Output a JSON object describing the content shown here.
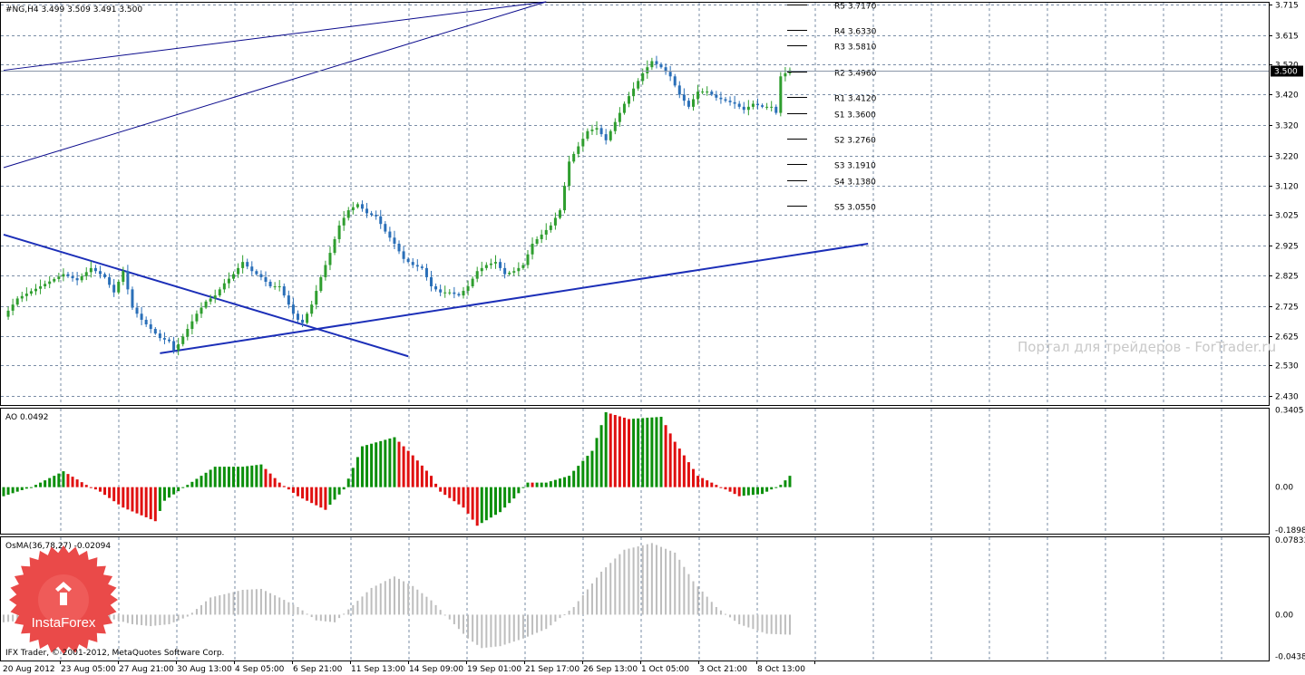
{
  "chart_data": {
    "type": "candlestick",
    "symbol_header": "#NG,H4  3.499 3.509 3.491 3.500",
    "price_axis": {
      "ticks": [
        "3.715",
        "3.615",
        "3.520",
        "3.420",
        "3.320",
        "3.220",
        "3.120",
        "3.025",
        "2.925",
        "2.825",
        "2.725",
        "2.625",
        "2.530",
        "2.430"
      ],
      "range": [
        2.4,
        3.725
      ],
      "current_price": "3.500"
    },
    "time_axis": {
      "labels": [
        "20 Aug 2012",
        "23 Aug 05:00",
        "27 Aug 21:00",
        "30 Aug 13:00",
        "4 Sep 05:00",
        "6 Sep 21:00",
        "11 Sep 13:00",
        "14 Sep 09:00",
        "19 Sep 01:00",
        "21 Sep 17:00",
        "26 Sep 13:00",
        "1 Oct 05:00",
        "3 Oct 21:00",
        "8 Oct 13:00"
      ]
    },
    "price_path": [
      [
        0,
        2.69
      ],
      [
        3,
        2.75
      ],
      [
        8,
        2.79
      ],
      [
        13,
        2.83
      ],
      [
        16,
        2.81
      ],
      [
        19,
        2.85
      ],
      [
        22,
        2.82
      ],
      [
        24,
        2.77
      ],
      [
        26,
        2.84
      ],
      [
        28,
        2.72
      ],
      [
        30,
        2.68
      ],
      [
        32,
        2.65
      ],
      [
        34,
        2.62
      ],
      [
        36,
        2.61
      ],
      [
        37,
        2.58
      ],
      [
        38,
        2.6
      ],
      [
        40,
        2.65
      ],
      [
        42,
        2.7
      ],
      [
        44,
        2.74
      ],
      [
        46,
        2.76
      ],
      [
        48,
        2.8
      ],
      [
        50,
        2.83
      ],
      [
        52,
        2.87
      ],
      [
        54,
        2.84
      ],
      [
        56,
        2.82
      ],
      [
        58,
        2.79
      ],
      [
        60,
        2.79
      ],
      [
        62,
        2.73
      ],
      [
        63,
        2.7
      ],
      [
        64,
        2.68
      ],
      [
        65,
        2.67
      ],
      [
        67,
        2.73
      ],
      [
        69,
        2.82
      ],
      [
        71,
        2.9
      ],
      [
        73,
        2.99
      ],
      [
        75,
        3.04
      ],
      [
        77,
        3.06
      ],
      [
        79,
        3.03
      ],
      [
        81,
        3.02
      ],
      [
        83,
        2.97
      ],
      [
        85,
        2.93
      ],
      [
        87,
        2.88
      ],
      [
        89,
        2.86
      ],
      [
        91,
        2.85
      ],
      [
        93,
        2.79
      ],
      [
        95,
        2.77
      ],
      [
        97,
        2.77
      ],
      [
        99,
        2.76
      ],
      [
        101,
        2.79
      ],
      [
        103,
        2.84
      ],
      [
        105,
        2.86
      ],
      [
        107,
        2.87
      ],
      [
        109,
        2.83
      ],
      [
        111,
        2.84
      ],
      [
        113,
        2.86
      ],
      [
        115,
        2.93
      ],
      [
        117,
        2.96
      ],
      [
        119,
        2.99
      ],
      [
        121,
        3.04
      ],
      [
        123,
        3.2
      ],
      [
        125,
        3.25
      ],
      [
        127,
        3.3
      ],
      [
        129,
        3.31
      ],
      [
        131,
        3.27
      ],
      [
        133,
        3.33
      ],
      [
        135,
        3.39
      ],
      [
        137,
        3.44
      ],
      [
        139,
        3.49
      ],
      [
        141,
        3.53
      ],
      [
        143,
        3.51
      ],
      [
        145,
        3.48
      ],
      [
        147,
        3.42
      ],
      [
        149,
        3.38
      ],
      [
        151,
        3.43
      ],
      [
        153,
        3.43
      ],
      [
        155,
        3.41
      ],
      [
        157,
        3.4
      ],
      [
        159,
        3.39
      ],
      [
        161,
        3.37
      ],
      [
        163,
        3.39
      ],
      [
        165,
        3.38
      ],
      [
        167,
        3.38
      ],
      [
        168,
        3.36
      ],
      [
        169,
        3.48
      ],
      [
        170,
        3.49
      ],
      [
        171,
        3.5
      ]
    ],
    "pivot_levels": [
      {
        "label": "R5",
        "value": "3.7170"
      },
      {
        "label": "R4",
        "value": "3.6330"
      },
      {
        "label": "R3",
        "value": "3.5810"
      },
      {
        "label": "R2",
        "value": "3.4960"
      },
      {
        "label": "R1",
        "value": "3.4120"
      },
      {
        "label": "S1",
        "value": "3.3600"
      },
      {
        "label": "S2",
        "value": "3.2760"
      },
      {
        "label": "S3",
        "value": "3.1910"
      },
      {
        "label": "S4",
        "value": "3.1380"
      },
      {
        "label": "S5",
        "value": "3.0550"
      }
    ],
    "trendlines": [
      {
        "from": [
          0,
          3.5
        ],
        "to": [
          118,
          3.725
        ],
        "color": "#0a0a8c",
        "width": 1
      },
      {
        "from": [
          0,
          3.18
        ],
        "to": [
          118,
          3.725
        ],
        "color": "#0a0a8c",
        "width": 1
      },
      {
        "from": [
          0,
          2.96
        ],
        "to": [
          88,
          2.56
        ],
        "color": "#1c2fb8",
        "width": 2
      },
      {
        "from": [
          34,
          2.57
        ],
        "to": [
          188,
          2.93
        ],
        "color": "#1c2fb8",
        "width": 2
      }
    ],
    "ao": {
      "title": "AO 0.0492",
      "ticks": [
        "0.3405",
        "0.00",
        "-0.1898"
      ],
      "range": [
        -0.205,
        0.35
      ],
      "keypoints": [
        [
          0,
          -0.04
        ],
        [
          6,
          0.0
        ],
        [
          13,
          0.07
        ],
        [
          18,
          0.01
        ],
        [
          21,
          -0.02
        ],
        [
          26,
          -0.09
        ],
        [
          33,
          -0.15
        ],
        [
          35,
          -0.06
        ],
        [
          40,
          0.01
        ],
        [
          46,
          0.09
        ],
        [
          52,
          0.09
        ],
        [
          56,
          0.1
        ],
        [
          60,
          0.02
        ],
        [
          64,
          -0.04
        ],
        [
          70,
          -0.1
        ],
        [
          74,
          -0.01
        ],
        [
          78,
          0.18
        ],
        [
          85,
          0.22
        ],
        [
          89,
          0.14
        ],
        [
          93,
          0.05
        ],
        [
          95,
          -0.02
        ],
        [
          100,
          -0.09
        ],
        [
          103,
          -0.17
        ],
        [
          108,
          -0.11
        ],
        [
          111,
          -0.05
        ],
        [
          114,
          0.02
        ],
        [
          118,
          0.02
        ],
        [
          123,
          0.05
        ],
        [
          128,
          0.16
        ],
        [
          131,
          0.33
        ],
        [
          136,
          0.3
        ],
        [
          143,
          0.31
        ],
        [
          146,
          0.2
        ],
        [
          151,
          0.05
        ],
        [
          156,
          0.0
        ],
        [
          160,
          -0.04
        ],
        [
          165,
          -0.03
        ],
        [
          169,
          0.01
        ],
        [
          171,
          0.05
        ]
      ],
      "colors": {
        "up": "#0b8f0b",
        "down": "#e01010"
      }
    },
    "osma": {
      "title": "OsMA(36,78,27) -0.02094",
      "ticks": [
        "0.07833",
        "0.00",
        "-0.04383"
      ],
      "range": [
        -0.048,
        0.082
      ],
      "keypoints": [
        [
          0,
          -0.008
        ],
        [
          6,
          -0.005
        ],
        [
          11,
          0.002
        ],
        [
          16,
          0.002
        ],
        [
          20,
          -0.006
        ],
        [
          24,
          -0.005
        ],
        [
          28,
          -0.01
        ],
        [
          32,
          -0.012
        ],
        [
          36,
          -0.01
        ],
        [
          40,
          -0.002
        ],
        [
          45,
          0.018
        ],
        [
          52,
          0.026
        ],
        [
          56,
          0.027
        ],
        [
          60,
          0.018
        ],
        [
          64,
          0.008
        ],
        [
          68,
          -0.006
        ],
        [
          72,
          -0.008
        ],
        [
          76,
          0.01
        ],
        [
          80,
          0.028
        ],
        [
          85,
          0.04
        ],
        [
          89,
          0.03
        ],
        [
          93,
          0.015
        ],
        [
          97,
          -0.005
        ],
        [
          101,
          -0.025
        ],
        [
          104,
          -0.035
        ],
        [
          108,
          -0.033
        ],
        [
          113,
          -0.025
        ],
        [
          118,
          -0.015
        ],
        [
          124,
          0.008
        ],
        [
          130,
          0.045
        ],
        [
          135,
          0.068
        ],
        [
          141,
          0.075
        ],
        [
          146,
          0.065
        ],
        [
          150,
          0.035
        ],
        [
          155,
          0.008
        ],
        [
          160,
          -0.01
        ],
        [
          166,
          -0.02
        ],
        [
          171,
          -0.021
        ]
      ],
      "color": "#bdbdbd"
    }
  },
  "watermark": "Портал для трейдеров - ForTrader.ru",
  "copyright": "IFX Trader, © 2001-2012, MetaQuotes Software Corp.",
  "logo": {
    "text": "InstaForex"
  },
  "colors": {
    "bull": "#2f9e2f",
    "bear": "#2a6fb8",
    "grid": "#7a8da6",
    "pivot": "#000000"
  }
}
